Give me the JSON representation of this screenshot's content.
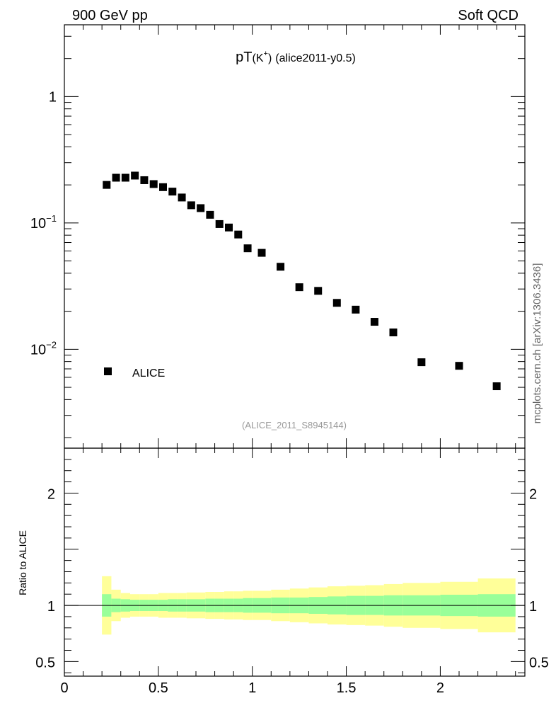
{
  "header": {
    "left": "900 GeV pp",
    "right": "Soft QCD"
  },
  "plot_title": {
    "main": "pT",
    "particle": "(K",
    "charge": "+",
    "close": ")",
    "analysis": "(alice2011-y0.5)"
  },
  "watermark": "(ALICE_2011_S8945144)",
  "side_text": "mcplots.cern.ch [arXiv:1306.3436]",
  "legend": {
    "label": "ALICE"
  },
  "ratio_ylabel": "Ratio to ALICE",
  "colors": {
    "marker": "#000000",
    "band_inner": "#99ff99",
    "band_outer": "#ffff99"
  },
  "chart_data": [
    {
      "type": "scatter",
      "yscale": "log",
      "xlim": [
        0,
        2.45
      ],
      "ylim": [
        0.00165,
        3.7
      ],
      "major_ticks": [
        {
          "value": 1,
          "base": "1",
          "exp": ""
        },
        {
          "value": 0.1,
          "base": "10",
          "exp": "−1"
        },
        {
          "value": 0.01,
          "base": "10",
          "exp": "−2"
        }
      ],
      "series": [
        {
          "name": "ALICE",
          "x": [
            0.225,
            0.275,
            0.325,
            0.375,
            0.425,
            0.475,
            0.525,
            0.575,
            0.625,
            0.675,
            0.725,
            0.775,
            0.825,
            0.875,
            0.925,
            0.975,
            1.05,
            1.15,
            1.25,
            1.35,
            1.45,
            1.55,
            1.65,
            1.75,
            1.9,
            2.1,
            2.3
          ],
          "y": [
            0.2,
            0.228,
            0.228,
            0.237,
            0.218,
            0.203,
            0.192,
            0.177,
            0.159,
            0.138,
            0.131,
            0.116,
            0.098,
            0.092,
            0.081,
            0.063,
            0.058,
            0.045,
            0.031,
            0.029,
            0.0233,
            0.0206,
            0.0165,
            0.0136,
            0.0079,
            0.0074,
            0.0051
          ]
        }
      ]
    },
    {
      "type": "area",
      "xlim": [
        0,
        2.45
      ],
      "ylim": [
        0.37,
        2.4
      ],
      "xticks": [
        0,
        0.5,
        1,
        1.5,
        2
      ],
      "xticklabels": [
        "0",
        "0.5",
        "1",
        "1.5",
        "2"
      ],
      "yticks": [
        0.5,
        1,
        2
      ],
      "yticklabels": [
        "0.5",
        "1",
        "2"
      ],
      "ylabel": "Ratio to ALICE",
      "bins": [
        0.2,
        0.25,
        0.3,
        0.35,
        0.4,
        0.45,
        0.5,
        0.55,
        0.6,
        0.65,
        0.7,
        0.75,
        0.8,
        0.85,
        0.9,
        0.95,
        1.0,
        1.1,
        1.2,
        1.3,
        1.4,
        1.5,
        1.6,
        1.7,
        1.8,
        2.0,
        2.2,
        2.4
      ],
      "inner_half": [
        0.1,
        0.06,
        0.055,
        0.05,
        0.05,
        0.05,
        0.05,
        0.055,
        0.055,
        0.055,
        0.055,
        0.06,
        0.06,
        0.06,
        0.06,
        0.065,
        0.065,
        0.07,
        0.07,
        0.075,
        0.08,
        0.085,
        0.085,
        0.09,
        0.09,
        0.095,
        0.1
      ],
      "outer_half": [
        0.26,
        0.14,
        0.11,
        0.1,
        0.1,
        0.1,
        0.11,
        0.11,
        0.11,
        0.115,
        0.115,
        0.12,
        0.12,
        0.125,
        0.125,
        0.13,
        0.13,
        0.14,
        0.15,
        0.16,
        0.17,
        0.175,
        0.18,
        0.19,
        0.2,
        0.21,
        0.24
      ],
      "reference_line": 1
    }
  ]
}
